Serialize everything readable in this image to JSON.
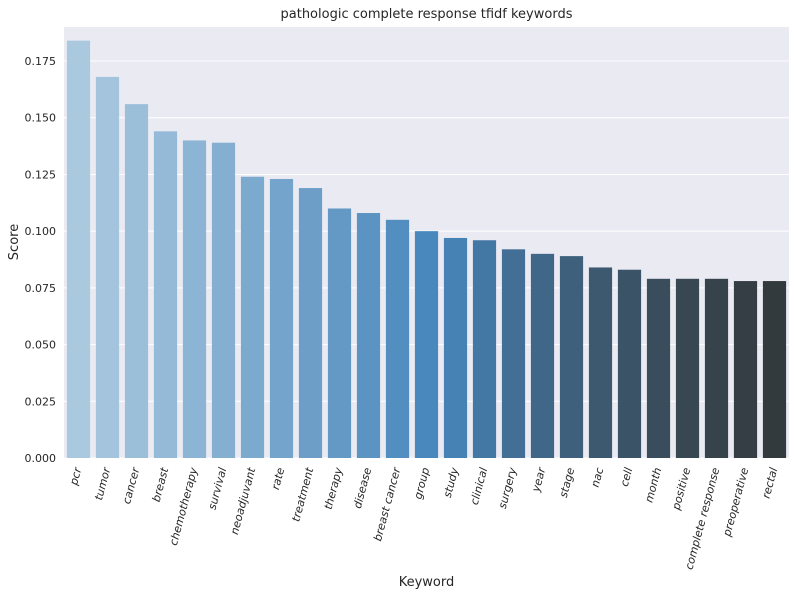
{
  "chart_data": {
    "type": "bar",
    "title": "pathologic complete response tfidf keywords",
    "xlabel": "Keyword",
    "ylabel": "Score",
    "ylim": [
      0,
      0.19
    ],
    "yticks": [
      0.0,
      0.025,
      0.05,
      0.075,
      0.1,
      0.125,
      0.15,
      0.175
    ],
    "ytick_labels": [
      "0.000",
      "0.025",
      "0.050",
      "0.075",
      "0.100",
      "0.125",
      "0.150",
      "0.175"
    ],
    "grid": true,
    "categories": [
      "pcr",
      "tumor",
      "cancer",
      "breast",
      "chemotherapy",
      "survival",
      "neoadjuvant",
      "rate",
      "treatment",
      "therapy",
      "disease",
      "breast cancer",
      "group",
      "study",
      "clinical",
      "surgery",
      "year",
      "stage",
      "nac",
      "cell",
      "month",
      "positive",
      "complete response",
      "preoperative",
      "rectal"
    ],
    "values": [
      0.184,
      0.168,
      0.156,
      0.144,
      0.14,
      0.139,
      0.124,
      0.123,
      0.119,
      0.11,
      0.108,
      0.105,
      0.1,
      0.097,
      0.096,
      0.092,
      0.09,
      0.089,
      0.084,
      0.083,
      0.079,
      0.079,
      0.079,
      0.078,
      0.078
    ],
    "colors": [
      "#abc9de",
      "#a3c4dc",
      "#9cbfd9",
      "#94bad7",
      "#8cb4d4",
      "#84afd1",
      "#7ca9ce",
      "#74a4cb",
      "#6c9ec8",
      "#6499c5",
      "#5b93c2",
      "#528ec0",
      "#4888bd",
      "#4682b4",
      "#4478a4",
      "#436f96",
      "#416788",
      "#3f607c",
      "#3d5970",
      "#3b5366",
      "#394d5c",
      "#374853",
      "#36434b",
      "#343e44",
      "#333a3d"
    ]
  }
}
